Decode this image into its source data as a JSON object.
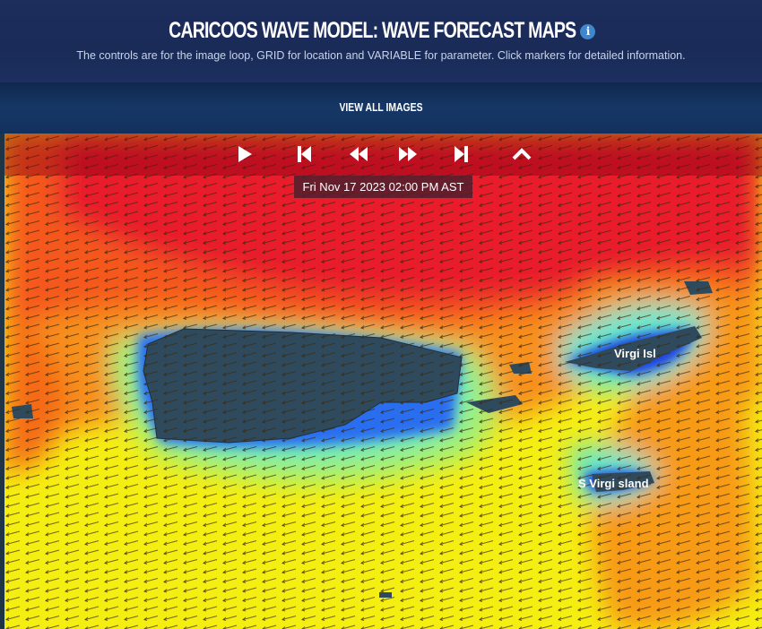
{
  "header": {
    "title": "CARICOOS WAVE MODEL: WAVE FORECAST MAPS",
    "info_icon": "info-circle-icon",
    "subtitle": "The controls are for the image loop, GRID for location and VARIABLE for parameter. Click markers for detailed information.",
    "view_all_label": "VIEW ALL IMAGES"
  },
  "player": {
    "controls": [
      "play-icon",
      "skip-first-icon",
      "step-back-icon",
      "step-forward-icon",
      "skip-last-icon",
      "chevron-up-icon"
    ],
    "timestamp": "Fri Nov 17 2023 02:00 PM AST"
  },
  "map": {
    "colors": {
      "land": "#2f4a5c",
      "high": "#e8102a",
      "mid": "#f77a10",
      "low": "#f4f20a",
      "calm": "#5fe8b0",
      "sheltered": "#1a3fe0"
    },
    "labels": {
      "bvi": "Virgi Isl",
      "usvi": "S Virgi sland"
    }
  }
}
